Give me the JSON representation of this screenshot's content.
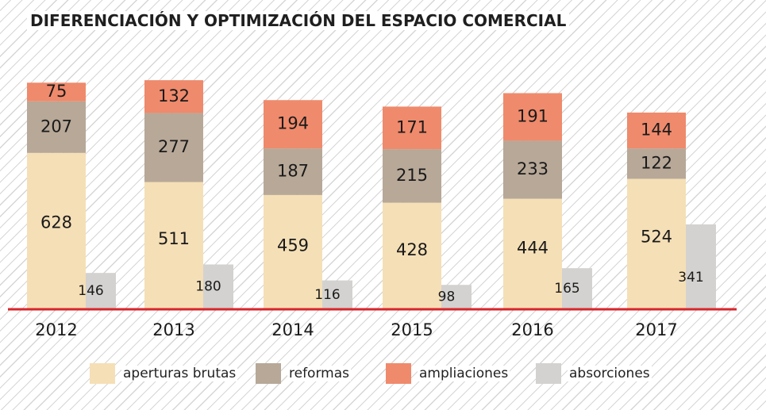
{
  "title": "DIFERENCIACIÓN Y OPTIMIZACIÓN DEL ESPACIO COMERCIAL",
  "chart_data": {
    "type": "bar",
    "title": "DIFERENCIACIÓN Y OPTIMIZACIÓN DEL ESPACIO COMERCIAL",
    "xlabel": "",
    "ylabel": "",
    "categories": [
      "2012",
      "2013",
      "2014",
      "2015",
      "2016",
      "2017"
    ],
    "stacked_series": [
      {
        "name": "aperturas brutas",
        "color": "#f5dfb6",
        "values": [
          628,
          511,
          459,
          428,
          444,
          524
        ]
      },
      {
        "name": "reformas",
        "color": "#b7a898",
        "values": [
          207,
          277,
          187,
          215,
          233,
          122
        ]
      },
      {
        "name": "ampliaciones",
        "color": "#ef8a6c",
        "values": [
          75,
          132,
          194,
          171,
          191,
          144
        ]
      }
    ],
    "side_series": {
      "name": "absorciones",
      "color": "#d3d2d0",
      "values": [
        146,
        180,
        116,
        98,
        165,
        341
      ]
    },
    "ylim": [
      0,
      1100
    ],
    "grid": false,
    "legend_position": "bottom",
    "baseline_color": "#d8262b"
  },
  "legend": [
    {
      "label": "aperturas brutas",
      "color": "#f5dfb6"
    },
    {
      "label": "reformas",
      "color": "#b7a898"
    },
    {
      "label": "ampliaciones",
      "color": "#ef8a6c"
    },
    {
      "label": "absorciones",
      "color": "#d3d2d0"
    }
  ]
}
